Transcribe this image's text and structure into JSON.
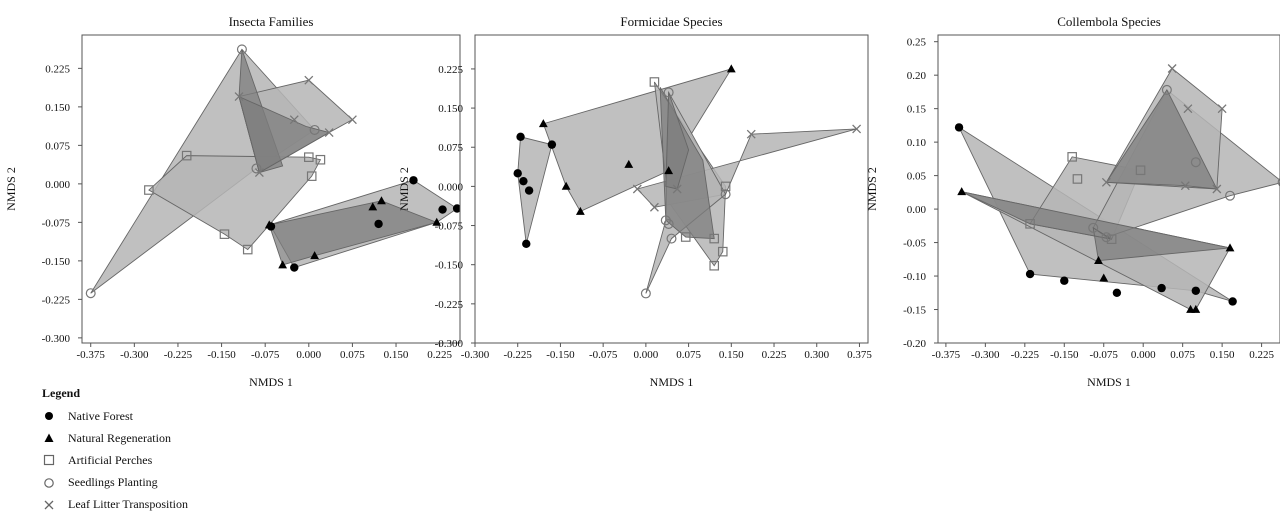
{
  "chart_data": [
    {
      "type": "scatter",
      "title": "Insecta Families",
      "xlabel": "NMDS 1",
      "ylabel": "NMDS 2",
      "xlim": [
        -0.39,
        0.26
      ],
      "ylim": [
        -0.31,
        0.29
      ],
      "xticks": [
        -0.375,
        -0.3,
        -0.225,
        -0.15,
        -0.075,
        0.0,
        0.075,
        0.15,
        0.225
      ],
      "xtick_labels": [
        "-0.375",
        "-0.300",
        "-0.225",
        "-0.150",
        "-0.075",
        "0.000",
        "0.075",
        "0.150",
        "0.225"
      ],
      "yticks": [
        0.225,
        0.15,
        0.075,
        0.0,
        -0.075,
        -0.15,
        -0.225,
        -0.3
      ],
      "ytick_labels": [
        "0.225",
        "0.150",
        "0.075",
        "0.000",
        "-0.075",
        "-0.150",
        "-0.225",
        "-0.300"
      ],
      "series": [
        {
          "key": "nf",
          "points": [
            [
              -0.065,
              -0.083
            ],
            [
              -0.025,
              -0.163
            ],
            [
              0.12,
              -0.078
            ],
            [
              0.18,
              0.007
            ],
            [
              0.23,
              -0.05
            ],
            [
              0.255,
              -0.048
            ]
          ]
        },
        {
          "key": "nr",
          "points": [
            [
              -0.068,
              -0.08
            ],
            [
              -0.045,
              -0.158
            ],
            [
              0.01,
              -0.14
            ],
            [
              0.11,
              -0.045
            ],
            [
              0.125,
              -0.033
            ],
            [
              0.22,
              -0.075
            ]
          ]
        },
        {
          "key": "ap",
          "points": [
            [
              -0.275,
              -0.012
            ],
            [
              -0.21,
              0.055
            ],
            [
              -0.145,
              -0.098
            ],
            [
              -0.105,
              -0.128
            ],
            [
              0.0,
              0.052
            ],
            [
              0.005,
              0.015
            ],
            [
              0.02,
              0.047
            ]
          ]
        },
        {
          "key": "sp",
          "points": [
            [
              -0.375,
              -0.213
            ],
            [
              -0.115,
              0.262
            ],
            [
              -0.09,
              0.03
            ],
            [
              0.01,
              0.105
            ]
          ]
        },
        {
          "key": "lt",
          "points": [
            [
              -0.12,
              0.17
            ],
            [
              -0.085,
              0.022
            ],
            [
              -0.025,
              0.125
            ],
            [
              0.0,
              0.202
            ],
            [
              0.035,
              0.1
            ],
            [
              0.075,
              0.125
            ]
          ]
        }
      ],
      "hulls": [
        {
          "shade": "light",
          "points": [
            [
              -0.375,
              -0.213
            ],
            [
              -0.115,
              0.262
            ],
            [
              0.01,
              0.105
            ],
            [
              -0.09,
              0.03
            ]
          ]
        },
        {
          "shade": "light",
          "points": [
            [
              -0.275,
              -0.012
            ],
            [
              -0.21,
              0.055
            ],
            [
              0.0,
              0.052
            ],
            [
              0.02,
              0.047
            ],
            [
              0.005,
              0.015
            ],
            [
              -0.105,
              -0.128
            ],
            [
              -0.145,
              -0.098
            ]
          ]
        },
        {
          "shade": "light",
          "points": [
            [
              -0.12,
              0.17
            ],
            [
              0.0,
              0.202
            ],
            [
              0.075,
              0.125
            ],
            [
              0.035,
              0.1
            ],
            [
              -0.085,
              0.022
            ]
          ]
        },
        {
          "shade": "dark",
          "points": [
            [
              -0.115,
              0.262
            ],
            [
              -0.12,
              0.17
            ],
            [
              -0.085,
              0.022
            ],
            [
              -0.045,
              0.035
            ]
          ]
        },
        {
          "shade": "dark",
          "points": [
            [
              -0.12,
              0.17
            ],
            [
              -0.005,
              0.112
            ],
            [
              0.035,
              0.1
            ],
            [
              -0.085,
              0.022
            ]
          ]
        },
        {
          "shade": "light",
          "points": [
            [
              -0.068,
              -0.08
            ],
            [
              0.18,
              0.007
            ],
            [
              0.255,
              -0.048
            ],
            [
              0.22,
              -0.075
            ],
            [
              -0.025,
              -0.163
            ],
            [
              -0.065,
              -0.083
            ]
          ]
        },
        {
          "shade": "dark",
          "points": [
            [
              -0.068,
              -0.08
            ],
            [
              0.125,
              -0.033
            ],
            [
              0.22,
              -0.075
            ],
            [
              0.01,
              -0.14
            ],
            [
              -0.045,
              -0.158
            ]
          ]
        }
      ]
    },
    {
      "type": "scatter",
      "title": "Formicidae Species",
      "xlabel": "NMDS 1",
      "ylabel": "NMDS 2",
      "xlim": [
        -0.3,
        0.39
      ],
      "ylim": [
        -0.3,
        0.29
      ],
      "xticks": [
        -0.3,
        -0.225,
        -0.15,
        -0.075,
        0.0,
        0.075,
        0.15,
        0.225,
        0.3,
        0.375
      ],
      "xtick_labels": [
        "-0.300",
        "-0.225",
        "-0.150",
        "-0.075",
        "0.000",
        "0.075",
        "0.150",
        "0.225",
        "0.300",
        "0.375"
      ],
      "yticks": [
        0.225,
        0.15,
        0.075,
        0.0,
        -0.075,
        -0.15,
        -0.225,
        -0.3
      ],
      "ytick_labels": [
        "0.225",
        "0.150",
        "0.075",
        "0.000",
        "-0.075",
        "-0.150",
        "-0.225",
        "-0.300"
      ],
      "series": [
        {
          "key": "nf",
          "points": [
            [
              -0.22,
              0.095
            ],
            [
              -0.225,
              0.025
            ],
            [
              -0.215,
              0.01
            ],
            [
              -0.205,
              -0.008
            ],
            [
              -0.21,
              -0.11
            ],
            [
              -0.165,
              0.08
            ]
          ]
        },
        {
          "key": "nr",
          "points": [
            [
              -0.18,
              0.12
            ],
            [
              -0.14,
              0.0
            ],
            [
              -0.115,
              -0.048
            ],
            [
              -0.03,
              0.042
            ],
            [
              0.04,
              0.03
            ],
            [
              0.15,
              0.225
            ]
          ]
        },
        {
          "key": "ap",
          "points": [
            [
              0.015,
              0.2
            ],
            [
              0.12,
              -0.1
            ],
            [
              0.135,
              -0.125
            ],
            [
              0.14,
              0.0
            ],
            [
              0.12,
              -0.152
            ],
            [
              0.07,
              -0.097
            ]
          ]
        },
        {
          "key": "sp",
          "points": [
            [
              0.04,
              0.18
            ],
            [
              0.035,
              -0.065
            ],
            [
              0.04,
              -0.072
            ],
            [
              0.045,
              -0.1
            ],
            [
              0.0,
              -0.205
            ],
            [
              0.14,
              -0.015
            ]
          ]
        },
        {
          "key": "lt",
          "points": [
            [
              -0.015,
              -0.005
            ],
            [
              0.015,
              -0.04
            ],
            [
              0.055,
              -0.005
            ],
            [
              0.185,
              0.1
            ],
            [
              0.37,
              0.11
            ]
          ]
        }
      ],
      "hulls": [
        {
          "shade": "light",
          "points": [
            [
              -0.22,
              0.095
            ],
            [
              -0.165,
              0.08
            ],
            [
              -0.21,
              -0.11
            ],
            [
              -0.225,
              0.025
            ]
          ]
        },
        {
          "shade": "light",
          "points": [
            [
              -0.18,
              0.12
            ],
            [
              0.15,
              0.225
            ],
            [
              0.04,
              0.03
            ],
            [
              -0.115,
              -0.048
            ],
            [
              -0.14,
              0.0
            ]
          ]
        },
        {
          "shade": "light",
          "points": [
            [
              0.015,
              0.2
            ],
            [
              0.14,
              0.0
            ],
            [
              0.135,
              -0.125
            ],
            [
              0.12,
              -0.152
            ],
            [
              0.04,
              -0.03
            ]
          ]
        },
        {
          "shade": "light",
          "points": [
            [
              -0.015,
              -0.005
            ],
            [
              0.37,
              0.11
            ],
            [
              0.185,
              0.1
            ],
            [
              0.14,
              -0.015
            ],
            [
              0.015,
              -0.04
            ]
          ]
        },
        {
          "shade": "light",
          "points": [
            [
              0.04,
              0.18
            ],
            [
              0.14,
              -0.015
            ],
            [
              0.045,
              -0.1
            ],
            [
              0.0,
              -0.205
            ],
            [
              0.035,
              -0.065
            ]
          ]
        },
        {
          "shade": "dark",
          "points": [
            [
              0.025,
              0.19
            ],
            [
              0.1,
              0.05
            ],
            [
              0.12,
              -0.1
            ],
            [
              0.07,
              -0.097
            ],
            [
              0.035,
              -0.065
            ]
          ]
        },
        {
          "shade": "dark",
          "points": [
            [
              0.04,
              0.18
            ],
            [
              0.075,
              0.07
            ],
            [
              0.055,
              -0.005
            ],
            [
              0.035,
              0.0
            ]
          ]
        }
      ]
    },
    {
      "type": "scatter",
      "title": "Collembola Species",
      "xlabel": "NMDS 1",
      "ylabel": "NMDS 2",
      "xlim": [
        -0.39,
        0.26
      ],
      "ylim": [
        -0.2,
        0.26
      ],
      "xticks": [
        -0.375,
        -0.3,
        -0.225,
        -0.15,
        -0.075,
        0.0,
        0.075,
        0.15,
        0.225
      ],
      "xtick_labels": [
        "-0.375",
        "-0.300",
        "-0.225",
        "-0.150",
        "-0.075",
        "0.000",
        "0.075",
        "0.150",
        "0.225"
      ],
      "yticks": [
        0.25,
        0.2,
        0.15,
        0.1,
        0.05,
        0.0,
        -0.05,
        -0.1,
        -0.15,
        -0.2
      ],
      "ytick_labels": [
        "0.25",
        "0.20",
        "0.15",
        "0.10",
        "0.05",
        "0.00",
        "-0.05",
        "-0.10",
        "-0.15",
        "-0.20"
      ],
      "series": [
        {
          "key": "nf",
          "points": [
            [
              -0.35,
              0.122
            ],
            [
              -0.215,
              -0.097
            ],
            [
              -0.15,
              -0.107
            ],
            [
              -0.05,
              -0.125
            ],
            [
              0.035,
              -0.118
            ],
            [
              0.1,
              -0.122
            ],
            [
              0.17,
              -0.138
            ]
          ]
        },
        {
          "key": "nr",
          "points": [
            [
              -0.345,
              0.026
            ],
            [
              -0.085,
              -0.077
            ],
            [
              -0.075,
              -0.103
            ],
            [
              0.09,
              -0.15
            ],
            [
              0.1,
              -0.15
            ],
            [
              0.165,
              -0.058
            ]
          ]
        },
        {
          "key": "ap",
          "points": [
            [
              -0.215,
              -0.022
            ],
            [
              -0.135,
              0.078
            ],
            [
              -0.125,
              0.045
            ],
            [
              -0.06,
              -0.045
            ],
            [
              -0.005,
              0.058
            ]
          ]
        },
        {
          "key": "sp",
          "points": [
            [
              -0.095,
              -0.028
            ],
            [
              -0.07,
              -0.042
            ],
            [
              0.045,
              0.178
            ],
            [
              0.1,
              0.07
            ],
            [
              0.165,
              0.02
            ],
            [
              0.265,
              0.04
            ]
          ]
        },
        {
          "key": "lt",
          "points": [
            [
              -0.07,
              0.04
            ],
            [
              0.055,
              0.21
            ],
            [
              0.085,
              0.15
            ],
            [
              0.15,
              0.15
            ],
            [
              0.14,
              0.03
            ],
            [
              0.08,
              0.035
            ]
          ]
        }
      ],
      "hulls": [
        {
          "shade": "light",
          "points": [
            [
              -0.35,
              0.122
            ],
            [
              0.17,
              -0.138
            ],
            [
              0.1,
              -0.122
            ],
            [
              -0.215,
              -0.097
            ]
          ]
        },
        {
          "shade": "light",
          "points": [
            [
              -0.345,
              0.026
            ],
            [
              0.165,
              -0.058
            ],
            [
              0.1,
              -0.15
            ],
            [
              0.09,
              -0.15
            ]
          ]
        },
        {
          "shade": "light",
          "points": [
            [
              -0.215,
              -0.022
            ],
            [
              -0.135,
              0.078
            ],
            [
              -0.005,
              0.058
            ],
            [
              -0.06,
              -0.045
            ]
          ]
        },
        {
          "shade": "light",
          "points": [
            [
              -0.095,
              -0.028
            ],
            [
              0.045,
              0.178
            ],
            [
              0.265,
              0.04
            ],
            [
              0.165,
              0.02
            ],
            [
              -0.07,
              -0.042
            ]
          ]
        },
        {
          "shade": "light",
          "points": [
            [
              -0.07,
              0.04
            ],
            [
              0.055,
              0.21
            ],
            [
              0.15,
              0.15
            ],
            [
              0.14,
              0.03
            ]
          ]
        },
        {
          "shade": "dark",
          "points": [
            [
              -0.07,
              0.04
            ],
            [
              0.045,
              0.178
            ],
            [
              0.14,
              0.03
            ],
            [
              0.08,
              0.035
            ]
          ]
        },
        {
          "shade": "dark",
          "points": [
            [
              -0.215,
              -0.022
            ],
            [
              -0.06,
              -0.045
            ],
            [
              -0.095,
              -0.028
            ],
            [
              -0.085,
              -0.077
            ],
            [
              0.165,
              -0.058
            ],
            [
              -0.345,
              0.026
            ]
          ]
        }
      ]
    }
  ],
  "legend": {
    "title": "Legend",
    "items": [
      {
        "key": "nf",
        "label": "Native Forest",
        "icon": "filled-circle-icon"
      },
      {
        "key": "nr",
        "label": "Natural Regeneration",
        "icon": "filled-triangle-icon"
      },
      {
        "key": "ap",
        "label": "Artificial Perches",
        "icon": "open-square-icon"
      },
      {
        "key": "sp",
        "label": "Seedlings Planting",
        "icon": "open-circle-icon"
      },
      {
        "key": "lt",
        "label": "Leaf Litter Transposition",
        "icon": "cross-icon"
      }
    ]
  },
  "colors": {
    "hull_light": "#b5b5b5",
    "hull_dark": "#7d7d7d",
    "hull_stroke": "#666666",
    "marker": "#000000",
    "open_marker": "#777777",
    "axis": "#555555"
  }
}
